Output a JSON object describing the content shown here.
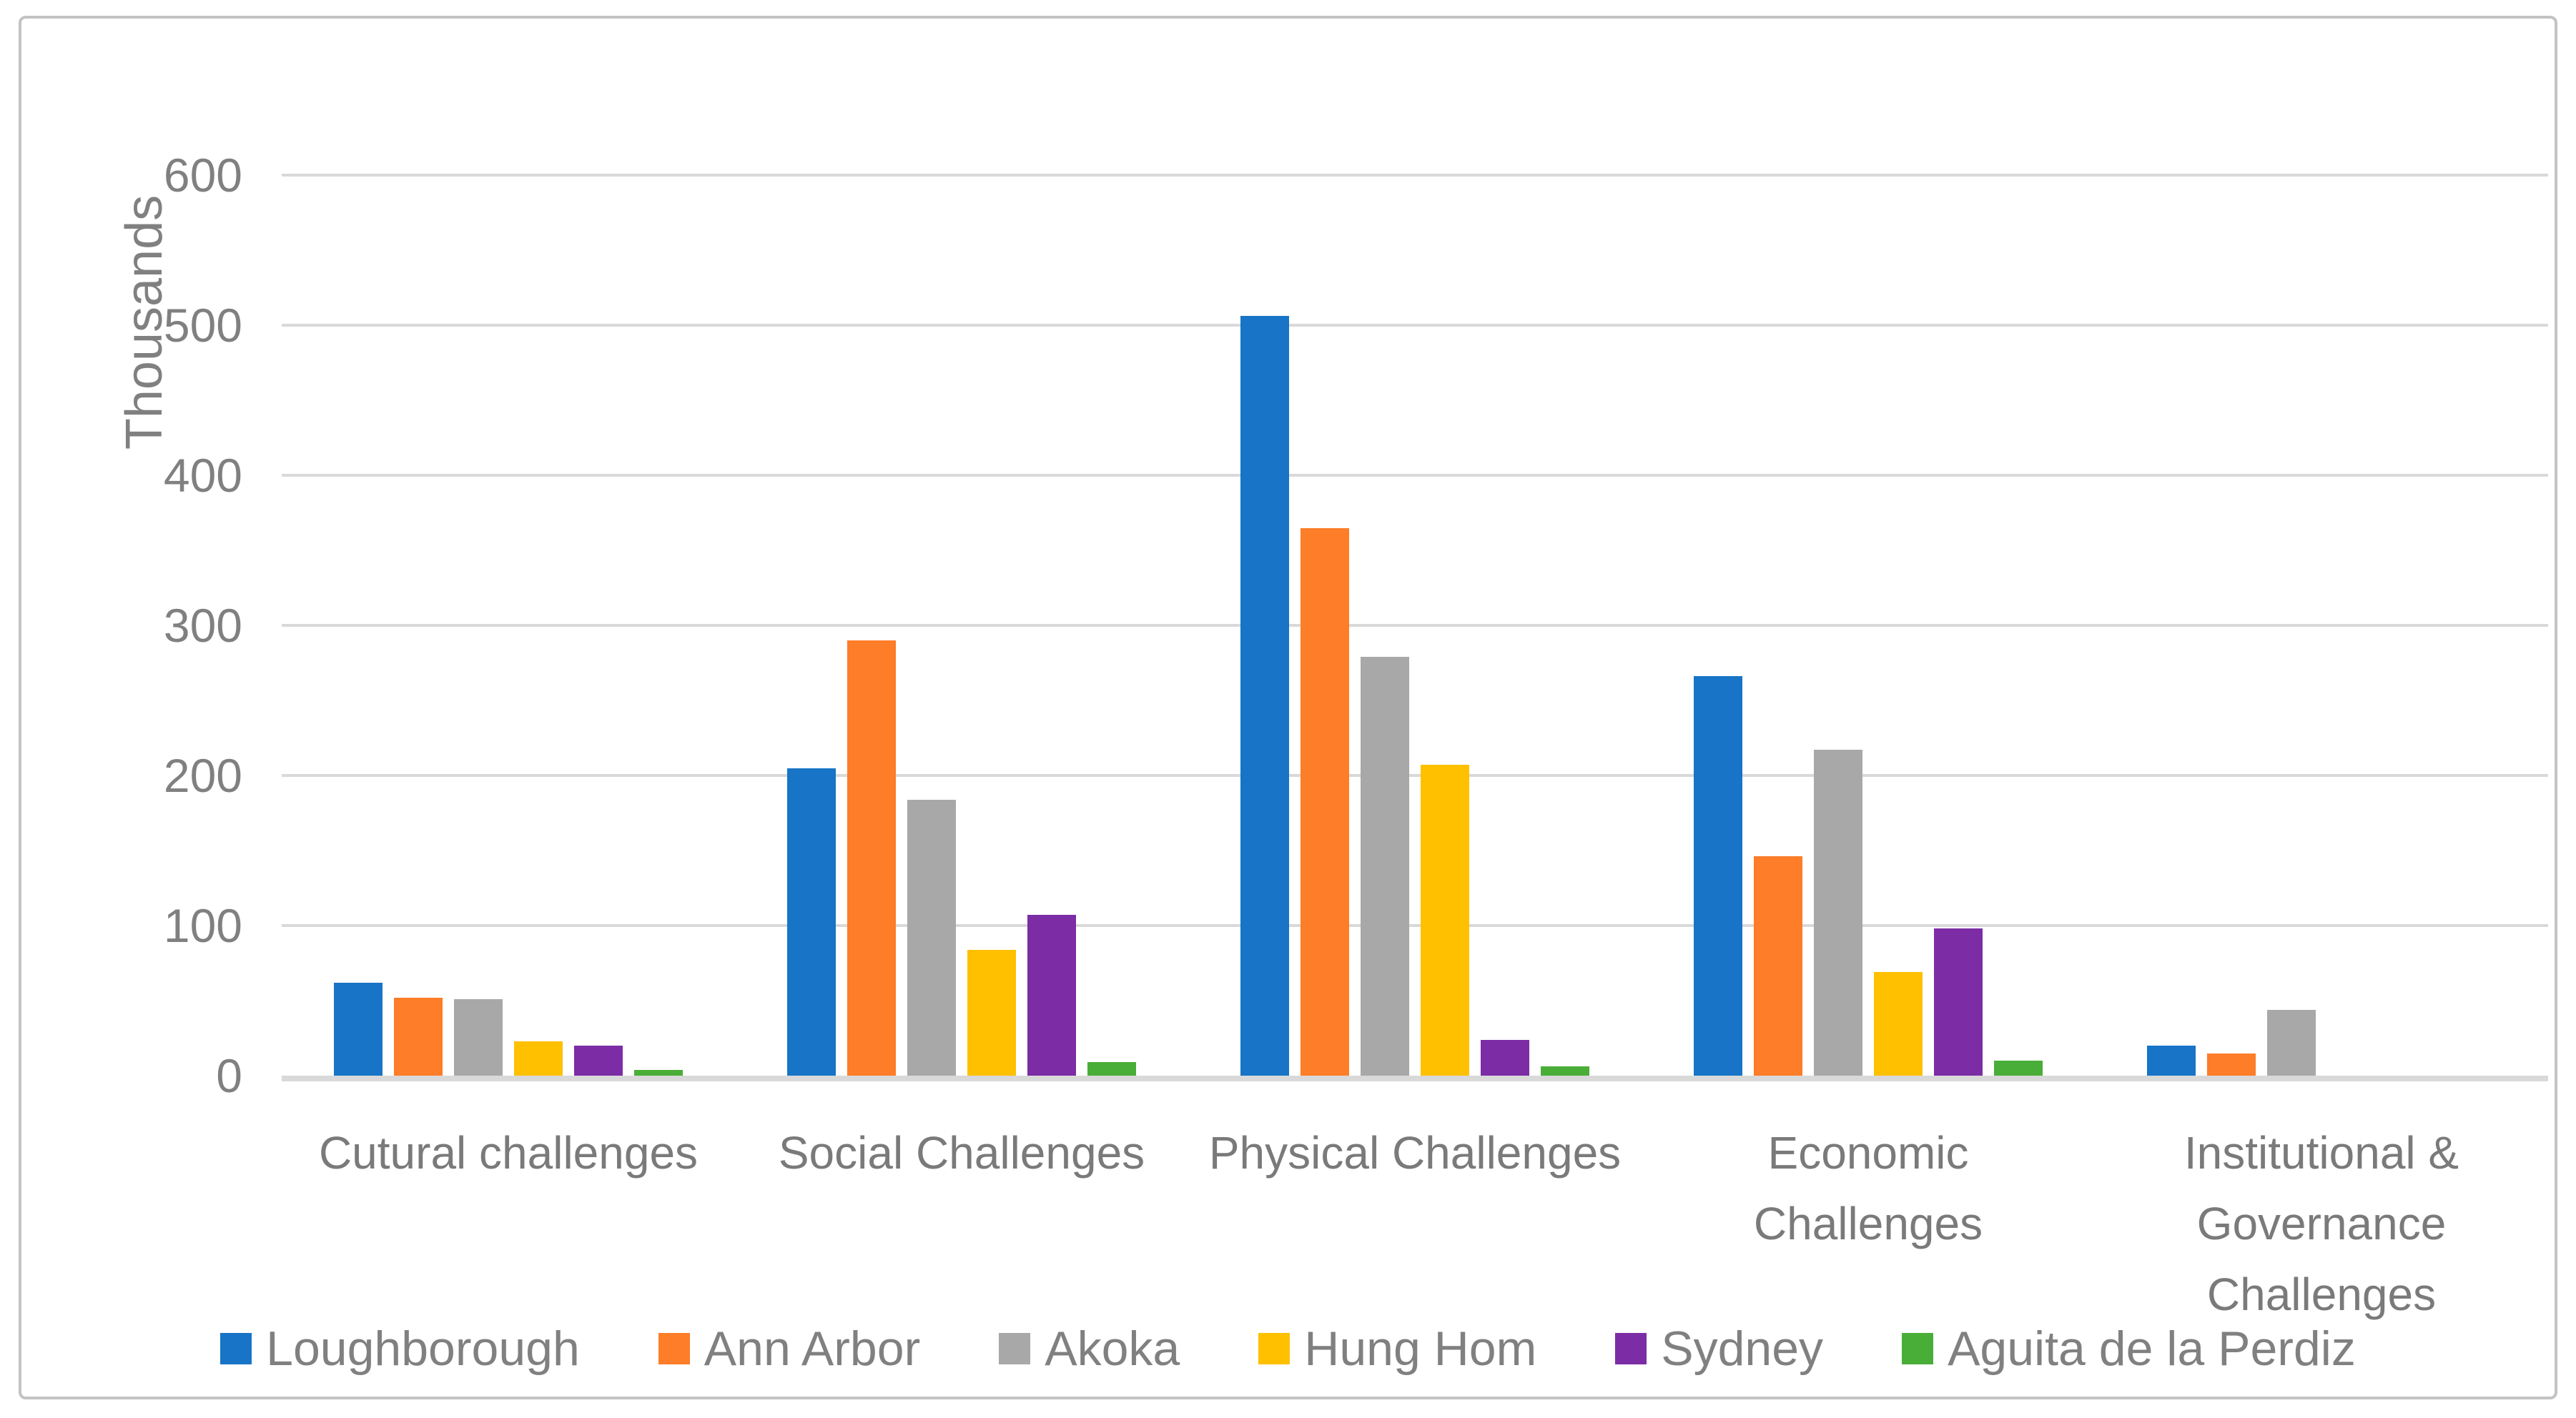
{
  "y_axis": {
    "title": "Thousands",
    "tick_labels": [
      "0",
      "100",
      "200",
      "300",
      "400",
      "500",
      "600"
    ]
  },
  "colors": {
    "gridline": "#d9d9d9",
    "axis_text": "#808080",
    "category_text": "#7a7a7a",
    "border": "#c3c3c3"
  },
  "chart_data": {
    "type": "bar",
    "title": "",
    "xlabel": "",
    "ylabel": "Thousands",
    "ylim": [
      0,
      600
    ],
    "y_ticks": [
      0,
      100,
      200,
      300,
      400,
      500,
      600
    ],
    "grid": true,
    "legend_position": "bottom",
    "categories": [
      "Cutural challenges",
      "Social Challenges",
      "Physical Challenges",
      "Economic Challenges",
      "Institutional & Governance Challenges"
    ],
    "category_lines": [
      [
        "Cutural challenges"
      ],
      [
        "Social Challenges"
      ],
      [
        "Physical Challenges"
      ],
      [
        "Economic",
        "Challenges"
      ],
      [
        "Institutional &",
        "Governance",
        "Challenges"
      ]
    ],
    "series": [
      {
        "name": "Loughborough",
        "color": "#1774C6",
        "values": [
          62,
          205,
          506,
          266,
          20
        ]
      },
      {
        "name": "Ann Arbor",
        "color": "#FD7D28",
        "values": [
          52,
          290,
          365,
          146,
          15
        ]
      },
      {
        "name": "Akoka",
        "color": "#A8A8A8",
        "values": [
          51,
          184,
          279,
          217,
          44
        ]
      },
      {
        "name": "Hung Hom",
        "color": "#FFC000",
        "values": [
          23,
          84,
          207,
          69,
          0
        ]
      },
      {
        "name": "Sydney",
        "color": "#7C2DA5",
        "values": [
          20,
          107,
          24,
          98,
          0
        ]
      },
      {
        "name": "Aguita de la Perdiz",
        "color": "#49AE38",
        "values": [
          4,
          9,
          6,
          10,
          0
        ]
      }
    ]
  }
}
